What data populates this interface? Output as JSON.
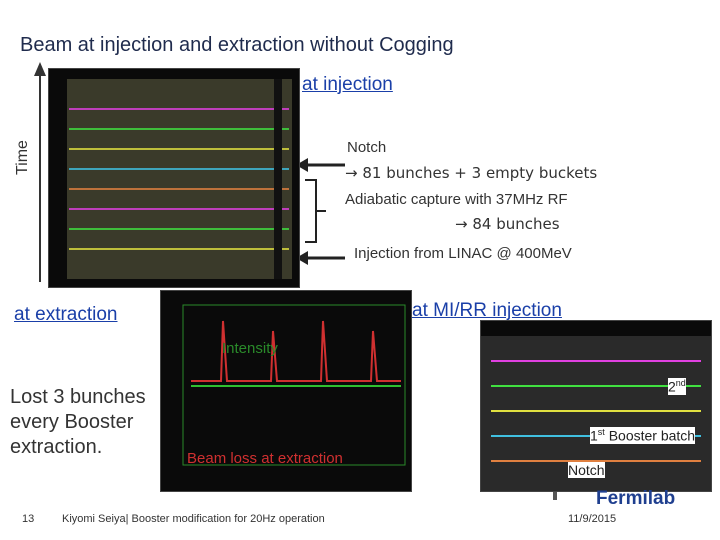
{
  "header": {
    "title": "Beam at injection and extraction without Cogging"
  },
  "time_axis": {
    "label": "Time"
  },
  "injection": {
    "heading": "at injection",
    "notes": [
      "Notch",
      "→ 81 bunches + 3 empty buckets",
      "Adiabatic capture with 37MHz RF",
      "→ 84 bunches",
      "Injection from LINAC @ 400MeV"
    ]
  },
  "extraction": {
    "heading": "at extraction",
    "intensity": "Intensity",
    "description": "Lost 3 bunches every Booster extraction.",
    "beam_loss": "Beam loss at extraction"
  },
  "mi_rr": {
    "heading": "at MI/RR injection",
    "second": {
      "number": "2",
      "suffix": "nd"
    },
    "first": {
      "number": "1",
      "suffix": "st",
      "text": "Booster batch"
    },
    "notch": "Notch"
  },
  "footer": {
    "page": "13",
    "author": "Kiyomi Seiya| Booster modification for 20Hz operation",
    "date": "11/9/2015",
    "logo": "Fermilab"
  }
}
